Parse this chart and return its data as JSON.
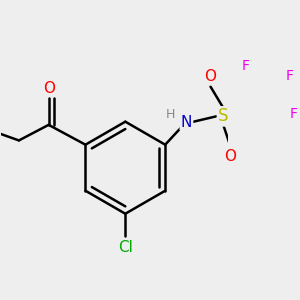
{
  "bg_color": "#eeeeee",
  "bond_color": "#000000",
  "bond_width": 1.8,
  "atom_colors": {
    "O": "#ff0000",
    "N": "#0000cc",
    "H": "#888888",
    "S": "#bbbb00",
    "F": "#ee00ee",
    "Cl": "#00aa00",
    "C": "#000000"
  },
  "font_size": 10,
  "figsize": [
    3.0,
    3.0
  ],
  "dpi": 100
}
